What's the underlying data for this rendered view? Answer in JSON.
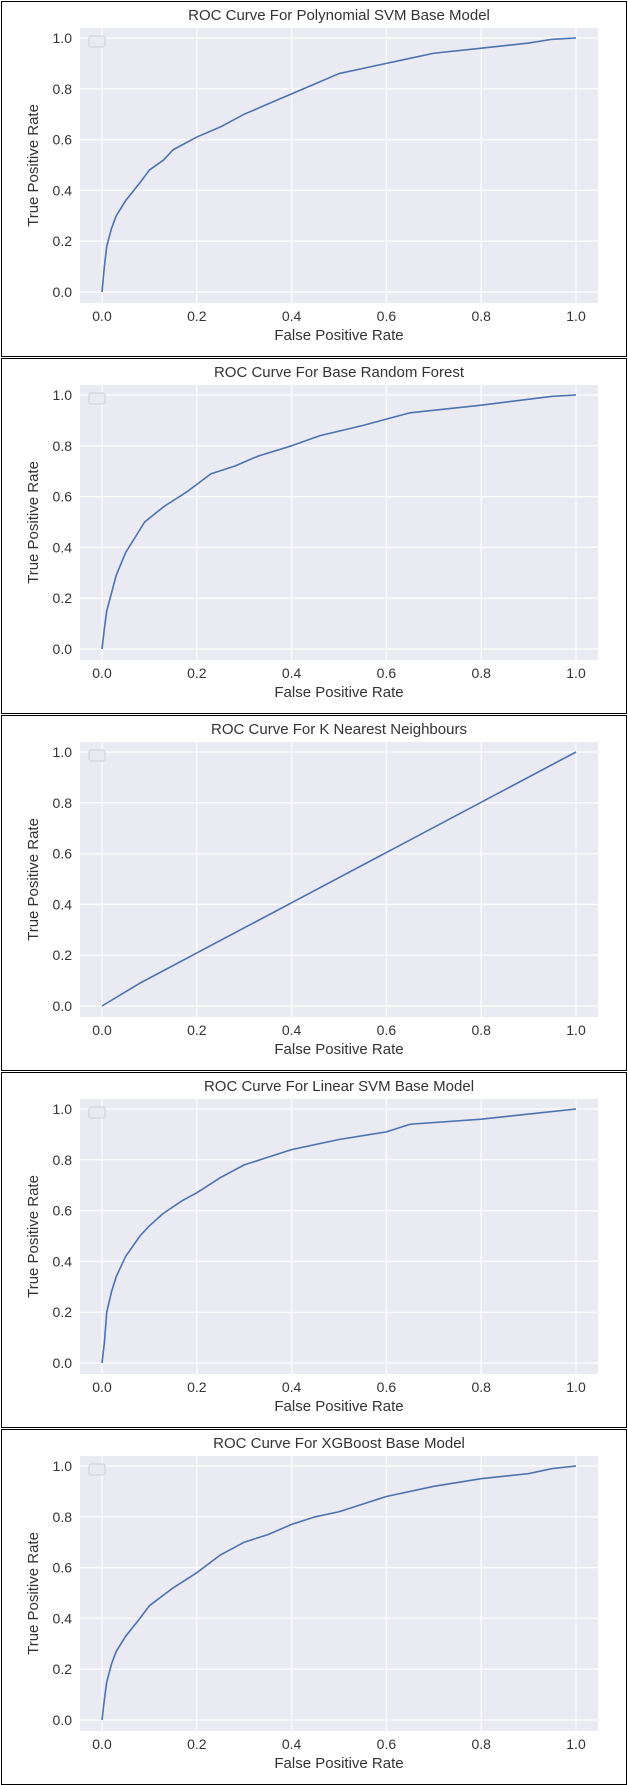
{
  "chart_data": [
    {
      "type": "line",
      "title": "ROC Curve For Polynomial SVM Base Model",
      "xlabel": "False Positive Rate",
      "ylabel": "True Positive Rate",
      "xlim": [
        0,
        1
      ],
      "ylim": [
        0,
        1
      ],
      "xticks": [
        "0.0",
        "0.2",
        "0.4",
        "0.6",
        "0.8",
        "1.0"
      ],
      "yticks": [
        "0.0",
        "0.2",
        "0.4",
        "0.6",
        "0.8",
        "1.0"
      ],
      "grid": true,
      "legend": "top-left (empty)",
      "series": [
        {
          "name": "",
          "color": "#4c72b0",
          "x": [
            0,
            0.005,
            0.01,
            0.02,
            0.03,
            0.05,
            0.08,
            0.1,
            0.13,
            0.15,
            0.2,
            0.25,
            0.3,
            0.35,
            0.4,
            0.45,
            0.5,
            0.55,
            0.6,
            0.65,
            0.7,
            0.8,
            0.9,
            0.95,
            1.0
          ],
          "y": [
            0,
            0.1,
            0.18,
            0.25,
            0.3,
            0.36,
            0.43,
            0.48,
            0.52,
            0.56,
            0.61,
            0.65,
            0.7,
            0.74,
            0.78,
            0.82,
            0.86,
            0.88,
            0.9,
            0.92,
            0.94,
            0.96,
            0.98,
            0.995,
            1.0
          ]
        }
      ]
    },
    {
      "type": "line",
      "title": "ROC Curve For Base Random Forest",
      "xlabel": "False Positive Rate",
      "ylabel": "True Positive Rate",
      "xlim": [
        0,
        1
      ],
      "ylim": [
        0,
        1
      ],
      "xticks": [
        "0.0",
        "0.2",
        "0.4",
        "0.6",
        "0.8",
        "1.0"
      ],
      "yticks": [
        "0.0",
        "0.2",
        "0.4",
        "0.6",
        "0.8",
        "1.0"
      ],
      "grid": true,
      "legend": "top-left (empty)",
      "series": [
        {
          "name": "",
          "color": "#4c72b0",
          "x": [
            0,
            0.005,
            0.01,
            0.02,
            0.03,
            0.05,
            0.07,
            0.09,
            0.13,
            0.18,
            0.23,
            0.28,
            0.33,
            0.4,
            0.46,
            0.55,
            0.65,
            0.8,
            0.95,
            1.0
          ],
          "y": [
            0,
            0.08,
            0.15,
            0.22,
            0.29,
            0.38,
            0.44,
            0.5,
            0.56,
            0.62,
            0.69,
            0.72,
            0.76,
            0.8,
            0.84,
            0.88,
            0.93,
            0.96,
            0.995,
            1.0
          ]
        }
      ]
    },
    {
      "type": "line",
      "title": "ROC Curve For K Nearest Neighbours",
      "xlabel": "False Positive Rate",
      "ylabel": "True Positive Rate",
      "xlim": [
        0,
        1
      ],
      "ylim": [
        0,
        1
      ],
      "xticks": [
        "0.0",
        "0.2",
        "0.4",
        "0.6",
        "0.8",
        "1.0"
      ],
      "yticks": [
        "0.0",
        "0.2",
        "0.4",
        "0.6",
        "0.8",
        "1.0"
      ],
      "grid": true,
      "legend": "top-left (empty)",
      "series": [
        {
          "name": "",
          "color": "#4c72b0",
          "x": [
            0,
            0.08,
            1.0
          ],
          "y": [
            0,
            0.09,
            1.0
          ]
        }
      ]
    },
    {
      "type": "line",
      "title": "ROC Curve For Linear SVM Base Model",
      "xlabel": "False Positive Rate",
      "ylabel": "True Positive Rate",
      "xlim": [
        0,
        1
      ],
      "ylim": [
        0,
        1
      ],
      "xticks": [
        "0.0",
        "0.2",
        "0.4",
        "0.6",
        "0.8",
        "1.0"
      ],
      "yticks": [
        "0.0",
        "0.2",
        "0.4",
        "0.6",
        "0.8",
        "1.0"
      ],
      "grid": true,
      "legend": "top-left (empty)",
      "series": [
        {
          "name": "",
          "color": "#4c72b0",
          "x": [
            0,
            0.005,
            0.01,
            0.02,
            0.03,
            0.05,
            0.08,
            0.1,
            0.13,
            0.17,
            0.2,
            0.25,
            0.3,
            0.35,
            0.4,
            0.5,
            0.6,
            0.65,
            0.8,
            0.9,
            1.0
          ],
          "y": [
            0,
            0.08,
            0.2,
            0.28,
            0.34,
            0.42,
            0.5,
            0.54,
            0.59,
            0.64,
            0.67,
            0.73,
            0.78,
            0.81,
            0.84,
            0.88,
            0.91,
            0.94,
            0.96,
            0.98,
            1.0
          ]
        }
      ]
    },
    {
      "type": "line",
      "title": "ROC Curve For XGBoost Base Model",
      "xlabel": "False Positive Rate",
      "ylabel": "True Positive Rate",
      "xlim": [
        0,
        1
      ],
      "ylim": [
        0,
        1
      ],
      "xticks": [
        "0.0",
        "0.2",
        "0.4",
        "0.6",
        "0.8",
        "1.0"
      ],
      "yticks": [
        "0.0",
        "0.2",
        "0.4",
        "0.6",
        "0.8",
        "1.0"
      ],
      "grid": true,
      "legend": "top-left (empty)",
      "series": [
        {
          "name": "",
          "color": "#4c72b0",
          "x": [
            0,
            0.005,
            0.01,
            0.02,
            0.03,
            0.05,
            0.08,
            0.1,
            0.15,
            0.2,
            0.25,
            0.3,
            0.35,
            0.4,
            0.45,
            0.5,
            0.55,
            0.6,
            0.7,
            0.8,
            0.9,
            0.95,
            1.0
          ],
          "y": [
            0,
            0.08,
            0.15,
            0.22,
            0.27,
            0.33,
            0.4,
            0.45,
            0.52,
            0.58,
            0.65,
            0.7,
            0.73,
            0.77,
            0.8,
            0.82,
            0.85,
            0.88,
            0.92,
            0.95,
            0.97,
            0.99,
            1.0
          ]
        }
      ]
    }
  ]
}
